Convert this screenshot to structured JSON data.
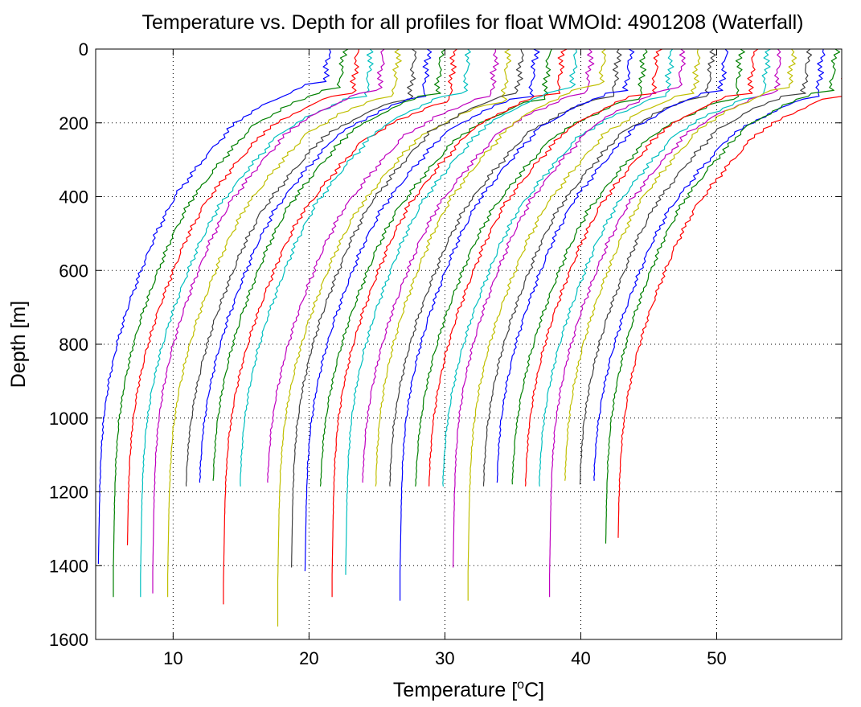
{
  "chart_data": {
    "type": "line",
    "title": "Temperature vs. Depth for all profiles for float WMOId: 4901208 (Waterfall)",
    "xlabel_prefix": "Temperature [",
    "xlabel_sup": "o",
    "xlabel_suffix": "C]",
    "ylabel": "Depth [m]",
    "xlim": [
      4.3,
      59.2
    ],
    "ylim": [
      0,
      1600
    ],
    "y_inverted": true,
    "grid": true,
    "grid_style": "dotted",
    "legend": "none",
    "x_ticks": [
      10,
      20,
      30,
      40,
      50
    ],
    "x_tick_labels": [
      "10",
      "20",
      "30",
      "40",
      "50"
    ],
    "y_ticks": [
      0,
      200,
      400,
      600,
      800,
      1000,
      1200,
      1400,
      1600
    ],
    "y_tick_labels": [
      "0",
      "200",
      "400",
      "600",
      "800",
      "1000",
      "1200",
      "1400",
      "1600"
    ],
    "colors": [
      "#0000ff",
      "#008000",
      "#ff0000",
      "#00bfbf",
      "#bf00bf",
      "#bfbf00",
      "#404040"
    ],
    "profile_shape": {
      "depth": [
        0,
        80,
        100,
        150,
        200,
        300,
        400,
        500,
        600,
        700,
        800,
        900,
        1000,
        1100,
        1200,
        1400,
        1600
      ],
      "offset": [
        17.0,
        16.9,
        15.5,
        12.5,
        10.2,
        7.8,
        5.7,
        4.3,
        3.2,
        2.2,
        1.4,
        0.8,
        0.4,
        0.2,
        0.1,
        0.0,
        0.0
      ],
      "mixed_layer_depth": [
        95,
        110,
        120,
        130,
        115,
        130,
        140,
        135,
        125,
        150,
        120,
        135,
        145,
        125,
        130,
        140,
        120,
        110,
        125,
        100,
        130,
        115,
        140,
        120,
        135,
        110,
        125,
        130,
        115,
        140,
        120,
        130,
        125,
        110,
        120,
        135,
        115,
        130,
        125,
        140
      ]
    },
    "series": [
      {
        "deep_temp": 4.5,
        "max_depth": 1395
      },
      {
        "deep_temp": 5.6,
        "max_depth": 1485
      },
      {
        "deep_temp": 6.6,
        "max_depth": 1345
      },
      {
        "deep_temp": 7.6,
        "max_depth": 1485
      },
      {
        "deep_temp": 8.5,
        "max_depth": 1475
      },
      {
        "deep_temp": 9.6,
        "max_depth": 1485
      },
      {
        "deep_temp": 10.8,
        "max_depth": 1185
      },
      {
        "deep_temp": 11.8,
        "max_depth": 1175
      },
      {
        "deep_temp": 12.8,
        "max_depth": 1170
      },
      {
        "deep_temp": 13.7,
        "max_depth": 1505
      },
      {
        "deep_temp": 14.8,
        "max_depth": 1185
      },
      {
        "deep_temp": 16.8,
        "max_depth": 1175
      },
      {
        "deep_temp": 17.7,
        "max_depth": 1565
      },
      {
        "deep_temp": 18.7,
        "max_depth": 1405
      },
      {
        "deep_temp": 19.7,
        "max_depth": 1415
      },
      {
        "deep_temp": 20.7,
        "max_depth": 1185
      },
      {
        "deep_temp": 21.7,
        "max_depth": 1485
      },
      {
        "deep_temp": 22.7,
        "max_depth": 1425
      },
      {
        "deep_temp": 23.8,
        "max_depth": 1175
      },
      {
        "deep_temp": 24.8,
        "max_depth": 1185
      },
      {
        "deep_temp": 25.8,
        "max_depth": 1185
      },
      {
        "deep_temp": 26.7,
        "max_depth": 1495
      },
      {
        "deep_temp": 27.7,
        "max_depth": 1185
      },
      {
        "deep_temp": 28.7,
        "max_depth": 1185
      },
      {
        "deep_temp": 29.7,
        "max_depth": 1185
      },
      {
        "deep_temp": 30.6,
        "max_depth": 1405
      },
      {
        "deep_temp": 31.7,
        "max_depth": 1495
      },
      {
        "deep_temp": 32.7,
        "max_depth": 1185
      },
      {
        "deep_temp": 33.7,
        "max_depth": 1175
      },
      {
        "deep_temp": 34.8,
        "max_depth": 1180
      },
      {
        "deep_temp": 35.8,
        "max_depth": 1185
      },
      {
        "deep_temp": 36.8,
        "max_depth": 1185
      },
      {
        "deep_temp": 37.7,
        "max_depth": 1485
      },
      {
        "deep_temp": 38.7,
        "max_depth": 1170
      },
      {
        "deep_temp": 39.8,
        "max_depth": 1180
      },
      {
        "deep_temp": 40.8,
        "max_depth": 1170
      },
      {
        "deep_temp": 41.8,
        "max_depth": 1340
      },
      {
        "deep_temp": 42.7,
        "max_depth": 1325
      }
    ]
  }
}
